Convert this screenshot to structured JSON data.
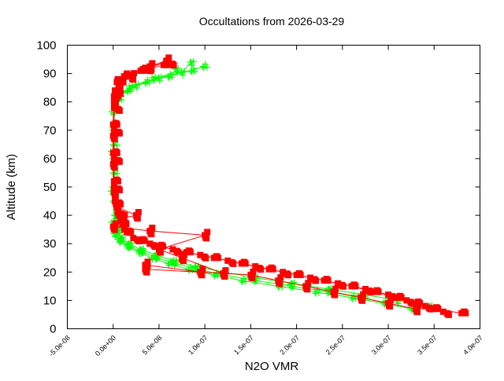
{
  "chart_data": {
    "type": "scatter",
    "title": "Occultations from 2026-03-29",
    "xlabel": "N2O VMR",
    "ylabel": "Altitude (km)",
    "xlim": [
      -5e-08,
      4e-07
    ],
    "ylim": [
      0,
      100
    ],
    "grid": false,
    "legend": "none",
    "x_ticks": [
      "-5.0e-08",
      "0.0e+00",
      "5.0e-08",
      "1.0e-07",
      "1.5e-07",
      "2.0e-07",
      "2.5e-07",
      "3.0e-07",
      "3.5e-07",
      "4.0e-07"
    ],
    "x_tick_values": [
      -5e-08,
      0,
      5e-08,
      1e-07,
      1.5e-07,
      2e-07,
      2.5e-07,
      3e-07,
      3.5e-07,
      4e-07
    ],
    "y_ticks": [
      "0",
      "10",
      "20",
      "30",
      "40",
      "50",
      "60",
      "70",
      "80",
      "90",
      "100"
    ],
    "y_tick_values": [
      0,
      10,
      20,
      30,
      40,
      50,
      60,
      70,
      80,
      90,
      100
    ],
    "series": [
      {
        "marker": "plus",
        "color": "#00ff00",
        "profiles": [
          [
            [
              3.25e-07,
              7
            ],
            [
              2.95e-07,
              9
            ],
            [
              2.6e-07,
              11
            ],
            [
              2.2e-07,
              13
            ],
            [
              1.8e-07,
              15
            ],
            [
              1.4e-07,
              17
            ],
            [
              1.1e-07,
              19
            ],
            [
              8.2e-08,
              21
            ],
            [
              6e-08,
              23
            ],
            [
              4.2e-08,
              25
            ],
            [
              2.8e-08,
              27
            ],
            [
              1.5e-08,
              29
            ],
            [
              7e-09,
              31
            ],
            [
              3e-09,
              34
            ],
            [
              1e-09,
              38
            ],
            [
              0,
              45
            ],
            [
              0,
              55
            ],
            [
              0,
              65
            ],
            [
              0,
              72
            ],
            [
              1e-09,
              78
            ],
            [
              5e-09,
              81
            ],
            [
              1.5e-08,
              84
            ],
            [
              3.5e-08,
              87
            ],
            [
              6e-08,
              89
            ],
            [
              8.5e-08,
              91
            ],
            [
              9.8e-08,
              92.5
            ]
          ],
          [
            [
              3.45e-07,
              8
            ],
            [
              3.1e-07,
              10
            ],
            [
              2.75e-07,
              12
            ],
            [
              2.35e-07,
              14
            ],
            [
              1.95e-07,
              16
            ],
            [
              1.55e-07,
              18
            ],
            [
              1.2e-07,
              20
            ],
            [
              9e-08,
              22
            ],
            [
              6.6e-08,
              24
            ],
            [
              4.7e-08,
              26
            ],
            [
              3e-08,
              28
            ],
            [
              1.7e-08,
              30
            ],
            [
              8e-09,
              32
            ],
            [
              4e-09,
              35
            ],
            [
              2e-09,
              40
            ],
            [
              0,
              50
            ],
            [
              0,
              60
            ],
            [
              0,
              70
            ],
            [
              2e-09,
              80
            ],
            [
              8e-09,
              83
            ],
            [
              2.5e-08,
              86
            ],
            [
              5e-08,
              88.5
            ],
            [
              7.5e-08,
              90.5
            ],
            [
              8.5e-08,
              94
            ]
          ],
          [
            [
              3e-07,
              9
            ],
            [
              2.7e-07,
              11
            ],
            [
              2.35e-07,
              13
            ],
            [
              1.95e-07,
              15
            ],
            [
              1.55e-07,
              17
            ],
            [
              1.2e-07,
              19
            ],
            [
              9.2e-08,
              21
            ],
            [
              6.8e-08,
              23
            ],
            [
              4.8e-08,
              25
            ],
            [
              3.2e-08,
              27
            ],
            [
              1.8e-08,
              29
            ],
            [
              8e-09,
              31
            ],
            [
              3e-09,
              33
            ],
            [
              1e-09,
              37
            ],
            [
              0,
              48
            ],
            [
              0,
              62
            ],
            [
              1e-09,
              76
            ],
            [
              6e-09,
              82
            ],
            [
              2e-08,
              85
            ],
            [
              4.5e-08,
              88
            ],
            [
              7e-08,
              91
            ]
          ]
        ]
      },
      {
        "marker": "square",
        "color": "#ff0000",
        "profiles": [
          [
            [
              3.6e-07,
              6
            ],
            [
              3.4e-07,
              8
            ],
            [
              3.2e-07,
              10
            ],
            [
              3e-07,
              12
            ],
            [
              2.75e-07,
              14
            ],
            [
              2.45e-07,
              16
            ],
            [
              2.15e-07,
              18
            ],
            [
              1.85e-07,
              20
            ],
            [
              1.55e-07,
              22
            ],
            [
              1.25e-07,
              24
            ],
            [
              9.5e-08,
              26
            ],
            [
              6.5e-08,
              28
            ],
            [
              4e-08,
              30
            ],
            [
              2.2e-08,
              32
            ],
            [
              1.2e-08,
              35
            ],
            [
              8e-09,
              38
            ],
            [
              5e-09,
              41
            ],
            [
              2e-09,
              45
            ],
            [
              1e-09,
              50
            ],
            [
              1e-09,
              60
            ],
            [
              1e-09,
              70
            ],
            [
              1e-09,
              78
            ],
            [
              2e-09,
              84
            ],
            [
              5e-09,
              88
            ],
            [
              1.5e-08,
              90
            ],
            [
              3.5e-08,
              92
            ],
            [
              6e-08,
              94
            ]
          ],
          [
            [
              3.8e-07,
              5.5
            ],
            [
              3.5e-07,
              7
            ],
            [
              3.3e-07,
              9
            ],
            [
              3.1e-07,
              11
            ],
            [
              2.85e-07,
              13
            ],
            [
              2.6e-07,
              15
            ],
            [
              2.3e-07,
              17
            ],
            [
              2e-07,
              19
            ],
            [
              1.7e-07,
              21
            ],
            [
              1.4e-07,
              23
            ],
            [
              1.1e-07,
              25
            ],
            [
              8e-08,
              27
            ],
            [
              5e-08,
              29
            ],
            [
              3e-08,
              31
            ],
            [
              1.5e-08,
              34
            ],
            [
              1e-08,
              37
            ],
            [
              6e-09,
              40
            ],
            [
              3e-09,
              44
            ],
            [
              1e-09,
              52
            ],
            [
              0,
              62
            ],
            [
              0,
              72
            ],
            [
              1e-09,
              82
            ],
            [
              4e-09,
              87
            ],
            [
              1.2e-08,
              89
            ],
            [
              3e-08,
              91
            ],
            [
              5.5e-08,
              93
            ]
          ],
          [
            [
              3.3e-07,
              7
            ],
            [
              3e-07,
              9
            ],
            [
              2.7e-07,
              11
            ],
            [
              2.4e-07,
              13
            ],
            [
              2.1e-07,
              15
            ],
            [
              1.8e-07,
              17
            ],
            [
              1.5e-07,
              19
            ],
            [
              3.5e-08,
              21
            ],
            [
              3.5e-08,
              22.5
            ],
            [
              9.5e-08,
              20
            ],
            [
              1.2e-07,
              19.5
            ],
            [
              7.5e-08,
              25
            ],
            [
              5e-08,
              28
            ],
            [
              1e-07,
              33
            ],
            [
              4e-08,
              34.5
            ],
            [
              0,
              36
            ],
            [
              1e-08,
              39
            ],
            [
              2.5e-08,
              40
            ],
            [
              4e-09,
              43
            ],
            [
              1e-09,
              48
            ],
            [
              0,
              58
            ],
            [
              0,
              68
            ],
            [
              1e-09,
              80
            ],
            [
              6e-09,
              86
            ],
            [
              2e-08,
              89
            ],
            [
              4e-08,
              92.5
            ],
            [
              5.8e-08,
              94.5
            ]
          ]
        ]
      }
    ]
  }
}
